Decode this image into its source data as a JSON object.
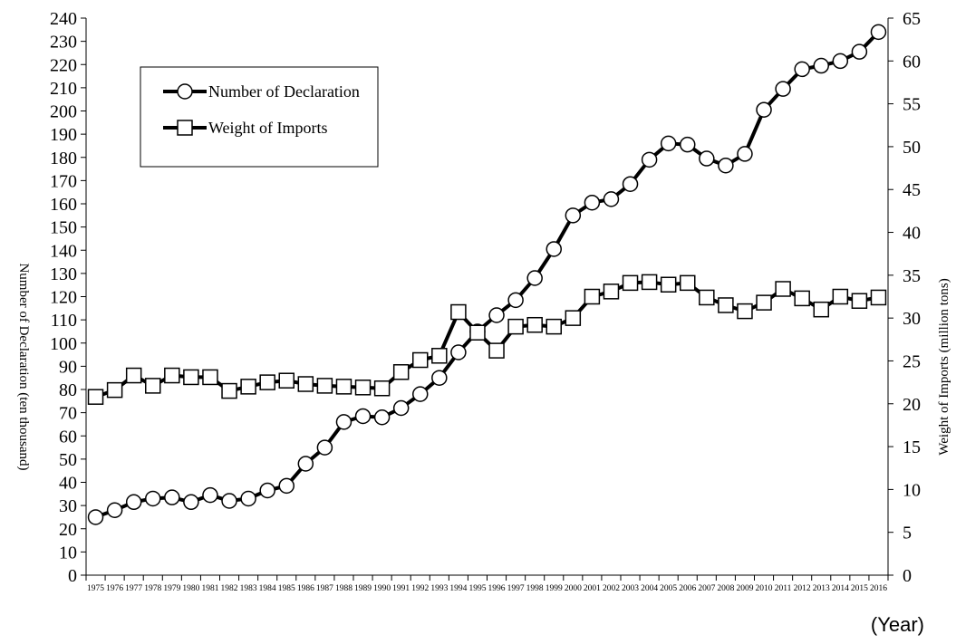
{
  "chart_data": {
    "type": "line",
    "x": [
      "1975",
      "1976",
      "1977",
      "1978",
      "1979",
      "1980",
      "1981",
      "1982",
      "1983",
      "1984",
      "1985",
      "1986",
      "1987",
      "1988",
      "1989",
      "1990",
      "1991",
      "1992",
      "1993",
      "1994",
      "1995",
      "1996",
      "1997",
      "1998",
      "1999",
      "2000",
      "2001",
      "2002",
      "2003",
      "2004",
      "2005",
      "2006",
      "2007",
      "2008",
      "2009",
      "2010",
      "2011",
      "2012",
      "2013",
      "2014",
      "2015",
      "2016"
    ],
    "series": [
      {
        "name": "Number of Declaration",
        "axis": "left",
        "marker": "circle",
        "values": [
          25,
          28,
          31.5,
          33,
          33.5,
          31.5,
          34.5,
          32,
          33,
          36.5,
          38.5,
          48,
          55,
          66,
          68.5,
          68,
          72,
          78,
          85,
          96,
          105,
          112,
          118.5,
          128,
          140.5,
          155,
          160.5,
          162,
          168.5,
          179,
          186,
          185.5,
          179.5,
          176.5,
          181.5,
          200.5,
          209.5,
          218,
          219.5,
          221.5,
          225.5,
          234
        ]
      },
      {
        "name": "Weight of Imports",
        "axis": "right",
        "marker": "square",
        "values": [
          20.8,
          21.6,
          23.3,
          22.1,
          23.3,
          23.1,
          23.1,
          21.5,
          22,
          22.5,
          22.7,
          22.3,
          22.1,
          22,
          21.9,
          21.8,
          23.7,
          25.1,
          25.6,
          30.7,
          28.3,
          26.2,
          29,
          29.2,
          29,
          30,
          32.5,
          33.1,
          34.1,
          34.2,
          33.9,
          34.1,
          32.4,
          31.5,
          30.8,
          31.8,
          33.4,
          32.3,
          31,
          32.5,
          32,
          32.4
        ]
      }
    ],
    "yleft": {
      "label": "Number of Declaration (ten thousand)",
      "min": 0,
      "max": 240,
      "step": 10
    },
    "yright": {
      "label": "Weight of Imports (million tons)",
      "min": 0,
      "max": 65,
      "step": 5
    },
    "xlabel": "(Year)",
    "legend_position": "top-left",
    "grid": false,
    "line_color": "#000000",
    "marker_fill": "#ffffff"
  }
}
